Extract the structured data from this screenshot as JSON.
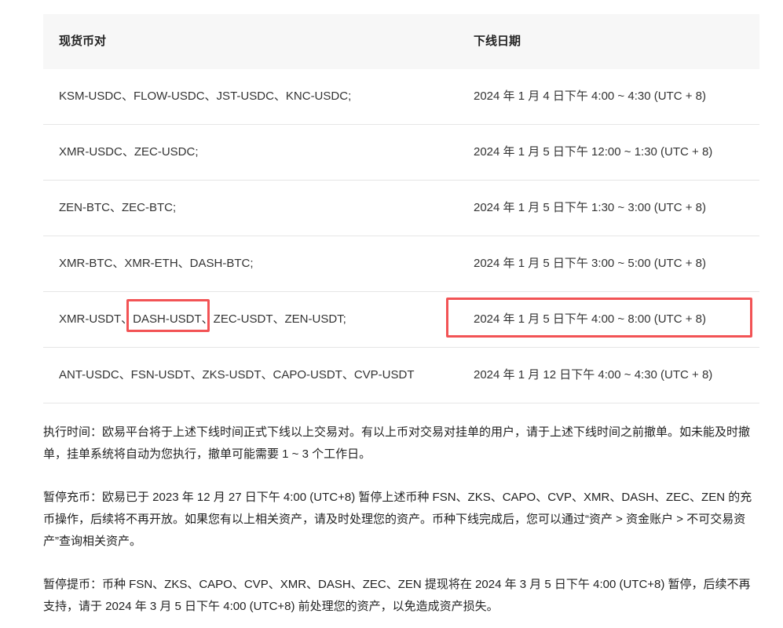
{
  "table": {
    "headers": [
      "现货币对",
      "下线日期"
    ],
    "rows": [
      {
        "pairs": "KSM-USDC、FLOW-USDC、JST-USDC、KNC-USDC;",
        "date": "2024 年 1 月 4 日下午 4:00 ~ 4:30 (UTC + 8)"
      },
      {
        "pairs": "XMR-USDC、ZEC-USDC;",
        "date": "2024 年 1 月 5 日下午 12:00 ~ 1:30 (UTC + 8)"
      },
      {
        "pairs": "ZEN-BTC、ZEC-BTC;",
        "date": "2024 年 1 月 5 日下午 1:30 ~ 3:00 (UTC + 8)"
      },
      {
        "pairs": "XMR-BTC、XMR-ETH、DASH-BTC;",
        "date": "2024 年 1 月 5 日下午 3:00 ~ 5:00 (UTC + 8)"
      },
      {
        "pairs": "XMR-USDT、DASH-USDT、ZEC-USDT、ZEN-USDT;",
        "date": "2024 年 1 月 5 日下午 4:00 ~ 8:00 (UTC + 8)"
      },
      {
        "pairs": "ANT-USDC、FSN-USDT、ZKS-USDT、CAPO-USDT、CVP-USDT",
        "date": "2024 年 1 月 12 日下午 4:00 ~ 4:30 (UTC + 8)"
      }
    ]
  },
  "highlight_color": "#f25355",
  "paragraphs": [
    "执行时间：欧易平台将于上述下线时间正式下线以上交易对。有以上币对交易对挂单的用户，请于上述下线时间之前撤单。如未能及时撤单，挂单系统将自动为您执行，撤单可能需要 1 ~ 3 个工作日。",
    "暂停充币：欧易已于 2023 年 12 月 27 日下午 4:00 (UTC+8) 暂停上述币种 FSN、ZKS、CAPO、CVP、XMR、DASH、ZEC、ZEN 的充币操作，后续将不再开放。如果您有以上相关资产，请及时处理您的资产。币种下线完成后，您可以通过“资产 > 资金账户 > 不可交易资产”查询相关资产。",
    "暂停提币：币种 FSN、ZKS、CAPO、CVP、XMR、DASH、ZEC、ZEN 提现将在 2024 年 3 月 5 日下午 4:00 (UTC+8) 暂停，后续不再支持，请于 2024 年 3 月 5 日下午 4:00 (UTC+8) 前处理您的资产，以免造成资产损失。"
  ]
}
